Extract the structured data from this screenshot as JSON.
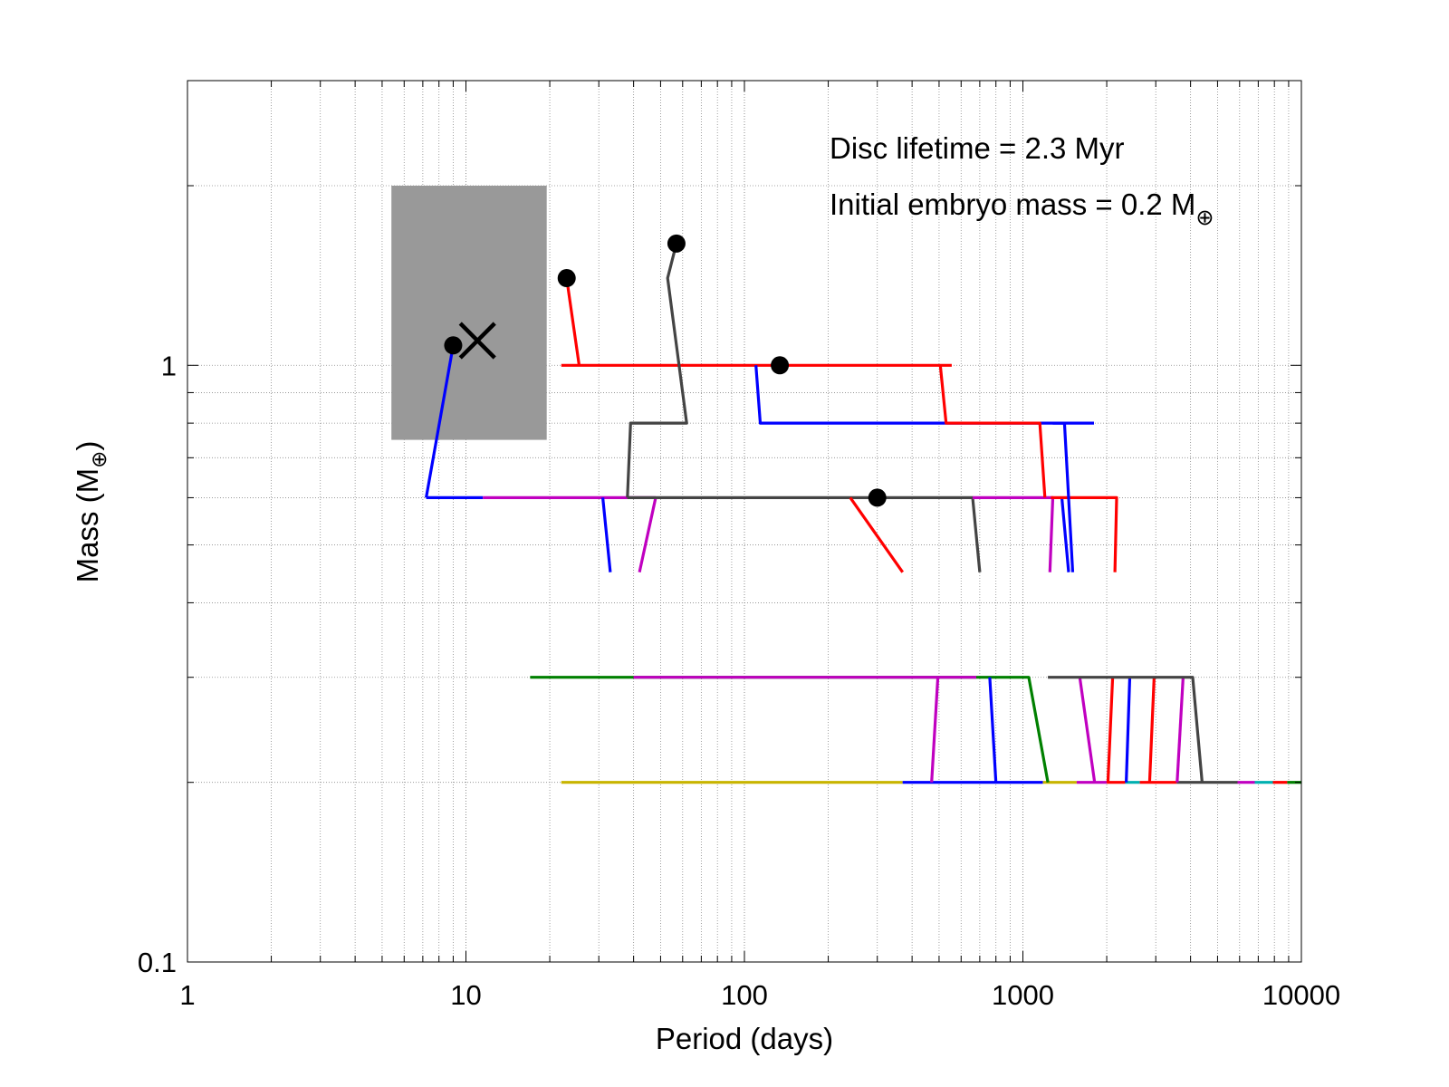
{
  "chart_data": {
    "type": "line",
    "title": "",
    "xlabel": "Period (days)",
    "ylabel": "Mass (M",
    "ylabel_subscript": "⊕",
    "ylabel_close": ")",
    "xscale": "log",
    "yscale": "log",
    "xlim": [
      1,
      10000
    ],
    "ylim": [
      0.1,
      3.0
    ],
    "grid": true,
    "x_ticks": [
      {
        "value": 1,
        "label": "1"
      },
      {
        "value": 10,
        "label": "10"
      },
      {
        "value": 100,
        "label": "100"
      },
      {
        "value": 1000,
        "label": "1000"
      },
      {
        "value": 10000,
        "label": "10000"
      }
    ],
    "y_ticks": [
      {
        "value": 0.1,
        "label": "0.1"
      },
      {
        "value": 1,
        "label": "1"
      }
    ],
    "annotations": {
      "lifetime": "Disc lifetime = 2.3 Myr",
      "mass_prefix": "Initial embryo mass = 0.2 M",
      "mass_subscript": "⊕"
    },
    "observed_region": {
      "x": [
        5.4,
        19.5
      ],
      "y": [
        0.75,
        2.0
      ],
      "color": "#999999"
    },
    "observed_planet": {
      "x": 11.0,
      "y": 1.1,
      "marker": "x"
    },
    "final_planets": [
      {
        "x": 9.0,
        "y": 1.08
      },
      {
        "x": 23.0,
        "y": 1.4
      },
      {
        "x": 57.0,
        "y": 1.6
      },
      {
        "x": 134.0,
        "y": 1.0
      },
      {
        "x": 300.0,
        "y": 0.6
      }
    ],
    "series": [
      {
        "color": "#c8b400",
        "points": [
          [
            22,
            0.2
          ],
          [
            370,
            0.2
          ]
        ]
      },
      {
        "color": "#0000ff",
        "points": [
          [
            370,
            0.2
          ],
          [
            1180,
            0.2
          ]
        ]
      },
      {
        "color": "#c8b400",
        "points": [
          [
            1180,
            0.2
          ],
          [
            1560,
            0.2
          ]
        ]
      },
      {
        "color": "#c000c0",
        "points": [
          [
            1560,
            0.2
          ],
          [
            2000,
            0.2
          ]
        ]
      },
      {
        "color": "#ff0000",
        "points": [
          [
            2000,
            0.2
          ],
          [
            2330,
            0.2
          ]
        ]
      },
      {
        "color": "#00b0b0",
        "points": [
          [
            2330,
            0.2
          ],
          [
            2630,
            0.2
          ]
        ]
      },
      {
        "color": "#ff0000",
        "points": [
          [
            2630,
            0.2
          ],
          [
            3570,
            0.2
          ]
        ]
      },
      {
        "color": "#444444",
        "points": [
          [
            3570,
            0.2
          ],
          [
            5900,
            0.2
          ]
        ]
      },
      {
        "color": "#c000c0",
        "points": [
          [
            5900,
            0.2
          ],
          [
            6800,
            0.2
          ]
        ]
      },
      {
        "color": "#00b0b0",
        "points": [
          [
            6800,
            0.2
          ],
          [
            7900,
            0.2
          ]
        ]
      },
      {
        "color": "#ff0000",
        "points": [
          [
            7900,
            0.2
          ],
          [
            8900,
            0.2
          ]
        ]
      },
      {
        "color": "#008000",
        "points": [
          [
            8900,
            0.2
          ],
          [
            10000,
            0.2
          ]
        ]
      },
      {
        "color": "#008000",
        "points": [
          [
            17,
            0.3
          ],
          [
            1050,
            0.3
          ],
          [
            1230,
            0.2
          ]
        ]
      },
      {
        "color": "#c000c0",
        "points": [
          [
            40,
            0.3
          ],
          [
            680,
            0.3
          ]
        ]
      },
      {
        "color": "#c000c0",
        "points": [
          [
            495,
            0.3
          ],
          [
            470,
            0.2
          ]
        ]
      },
      {
        "color": "#0000ff",
        "points": [
          [
            760,
            0.3
          ],
          [
            800,
            0.2
          ]
        ]
      },
      {
        "color": "#c000c0",
        "points": [
          [
            1600,
            0.3
          ],
          [
            1810,
            0.2
          ]
        ]
      },
      {
        "color": "#ff0000",
        "points": [
          [
            2100,
            0.3
          ],
          [
            2020,
            0.2
          ]
        ]
      },
      {
        "color": "#0000ff",
        "points": [
          [
            2420,
            0.3
          ],
          [
            2350,
            0.2
          ]
        ]
      },
      {
        "color": "#ff0000",
        "points": [
          [
            2960,
            0.3
          ],
          [
            2850,
            0.2
          ]
        ]
      },
      {
        "color": "#c000c0",
        "points": [
          [
            3760,
            0.3
          ],
          [
            3580,
            0.2
          ]
        ]
      },
      {
        "color": "#444444",
        "points": [
          [
            1230,
            0.3
          ],
          [
            4070,
            0.3
          ],
          [
            4400,
            0.2
          ]
        ]
      },
      {
        "color": "#0000ff",
        "points": [
          [
            7.2,
            0.6
          ],
          [
            11.5,
            0.6
          ]
        ]
      },
      {
        "color": "#c000c0",
        "points": [
          [
            11.5,
            0.6
          ],
          [
            48,
            0.6
          ]
        ]
      },
      {
        "color": "#0000ff",
        "points": [
          [
            31,
            0.6
          ],
          [
            33,
            0.45
          ]
        ]
      },
      {
        "color": "#c000c0",
        "points": [
          [
            48,
            0.6
          ],
          [
            42,
            0.45
          ]
        ]
      },
      {
        "color": "#444444",
        "points": [
          [
            38,
            0.6
          ],
          [
            660,
            0.6
          ],
          [
            700,
            0.45
          ]
        ]
      },
      {
        "color": "#ff0000",
        "points": [
          [
            240,
            0.6
          ],
          [
            370,
            0.45
          ]
        ]
      },
      {
        "color": "#c000c0",
        "points": [
          [
            660,
            0.6
          ],
          [
            1280,
            0.6
          ],
          [
            1250,
            0.45
          ]
        ]
      },
      {
        "color": "#0000ff",
        "points": [
          [
            1380,
            0.6
          ],
          [
            1460,
            0.45
          ]
        ]
      },
      {
        "color": "#ff0000",
        "points": [
          [
            1260,
            0.6
          ],
          [
            2170,
            0.6
          ],
          [
            2140,
            0.45
          ]
        ]
      },
      {
        "color": "#0000ff",
        "points": [
          [
            1280,
            0.8
          ],
          [
            1410,
            0.8
          ],
          [
            1510,
            0.45
          ]
        ]
      },
      {
        "color": "#0000ff",
        "points": [
          [
            7.2,
            0.6
          ],
          [
            9.0,
            1.08
          ]
        ]
      },
      {
        "color": "#ff0000",
        "points": [
          [
            22,
            1.0
          ],
          [
            555,
            1.0
          ]
        ]
      },
      {
        "color": "#ff0000",
        "points": [
          [
            23,
            1.4
          ],
          [
            25.5,
            1.0
          ]
        ]
      },
      {
        "color": "#444444",
        "points": [
          [
            38,
            0.6
          ],
          [
            39,
            0.8
          ],
          [
            62,
            0.8
          ],
          [
            53,
            1.4
          ],
          [
            57,
            1.6
          ]
        ]
      },
      {
        "color": "#0000ff",
        "points": [
          [
            110,
            1.0
          ],
          [
            114,
            0.8
          ],
          [
            1800,
            0.8
          ]
        ]
      },
      {
        "color": "#ff0000",
        "points": [
          [
            505,
            1.0
          ],
          [
            530,
            0.8
          ],
          [
            1150,
            0.8
          ],
          [
            1200,
            0.6
          ]
        ]
      }
    ]
  }
}
